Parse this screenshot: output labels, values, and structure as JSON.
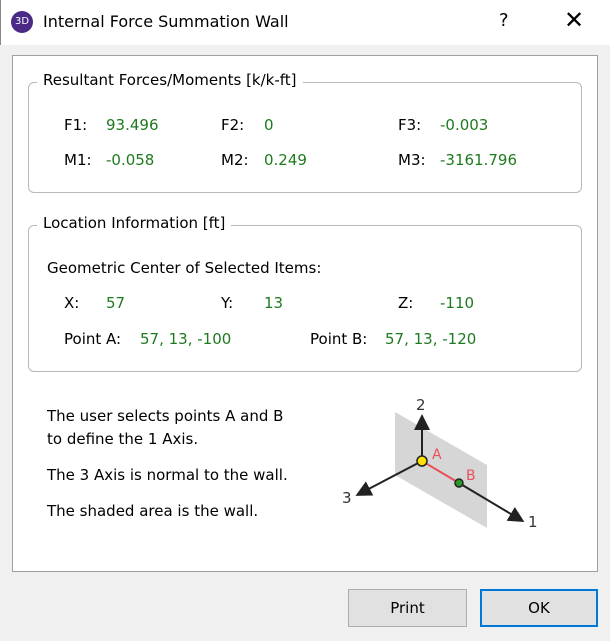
{
  "window": {
    "title": "Internal Force Summation Wall",
    "icon_text": "3D",
    "help": "?",
    "close": "✕"
  },
  "forces": {
    "legend": "Resultant Forces/Moments [k/k-ft]",
    "F1": {
      "label": "F1:",
      "value": "93.496"
    },
    "F2": {
      "label": "F2:",
      "value": "0"
    },
    "F3": {
      "label": "F3:",
      "value": "-0.003"
    },
    "M1": {
      "label": "M1:",
      "value": "-0.058"
    },
    "M2": {
      "label": "M2:",
      "value": "0.249"
    },
    "M3": {
      "label": "M3:",
      "value": "-3161.796"
    }
  },
  "location": {
    "legend": "Location Information [ft]",
    "subtitle": "Geometric Center of Selected Items:",
    "X": {
      "label": "X:",
      "value": "57"
    },
    "Y": {
      "label": "Y:",
      "value": "13"
    },
    "Z": {
      "label": "Z:",
      "value": "-110"
    },
    "pointA": {
      "label": "Point A:",
      "value": "57, 13, -100"
    },
    "pointB": {
      "label": "Point B:",
      "value": "57, 13, -120"
    }
  },
  "notes": [
    "The user selects points A and B",
    "to define the 1 Axis.",
    "The 3 Axis is normal to the wall.",
    "The shaded area is the wall."
  ],
  "diagram": {
    "axis1": "1",
    "axis2": "2",
    "axis3": "3",
    "pointA": "A",
    "pointB": "B"
  },
  "buttons": {
    "print": "Print",
    "ok": "OK"
  },
  "colors": {
    "value": "#1e7a1e",
    "point_label": "#e8505b",
    "accent": "#0078d7"
  }
}
